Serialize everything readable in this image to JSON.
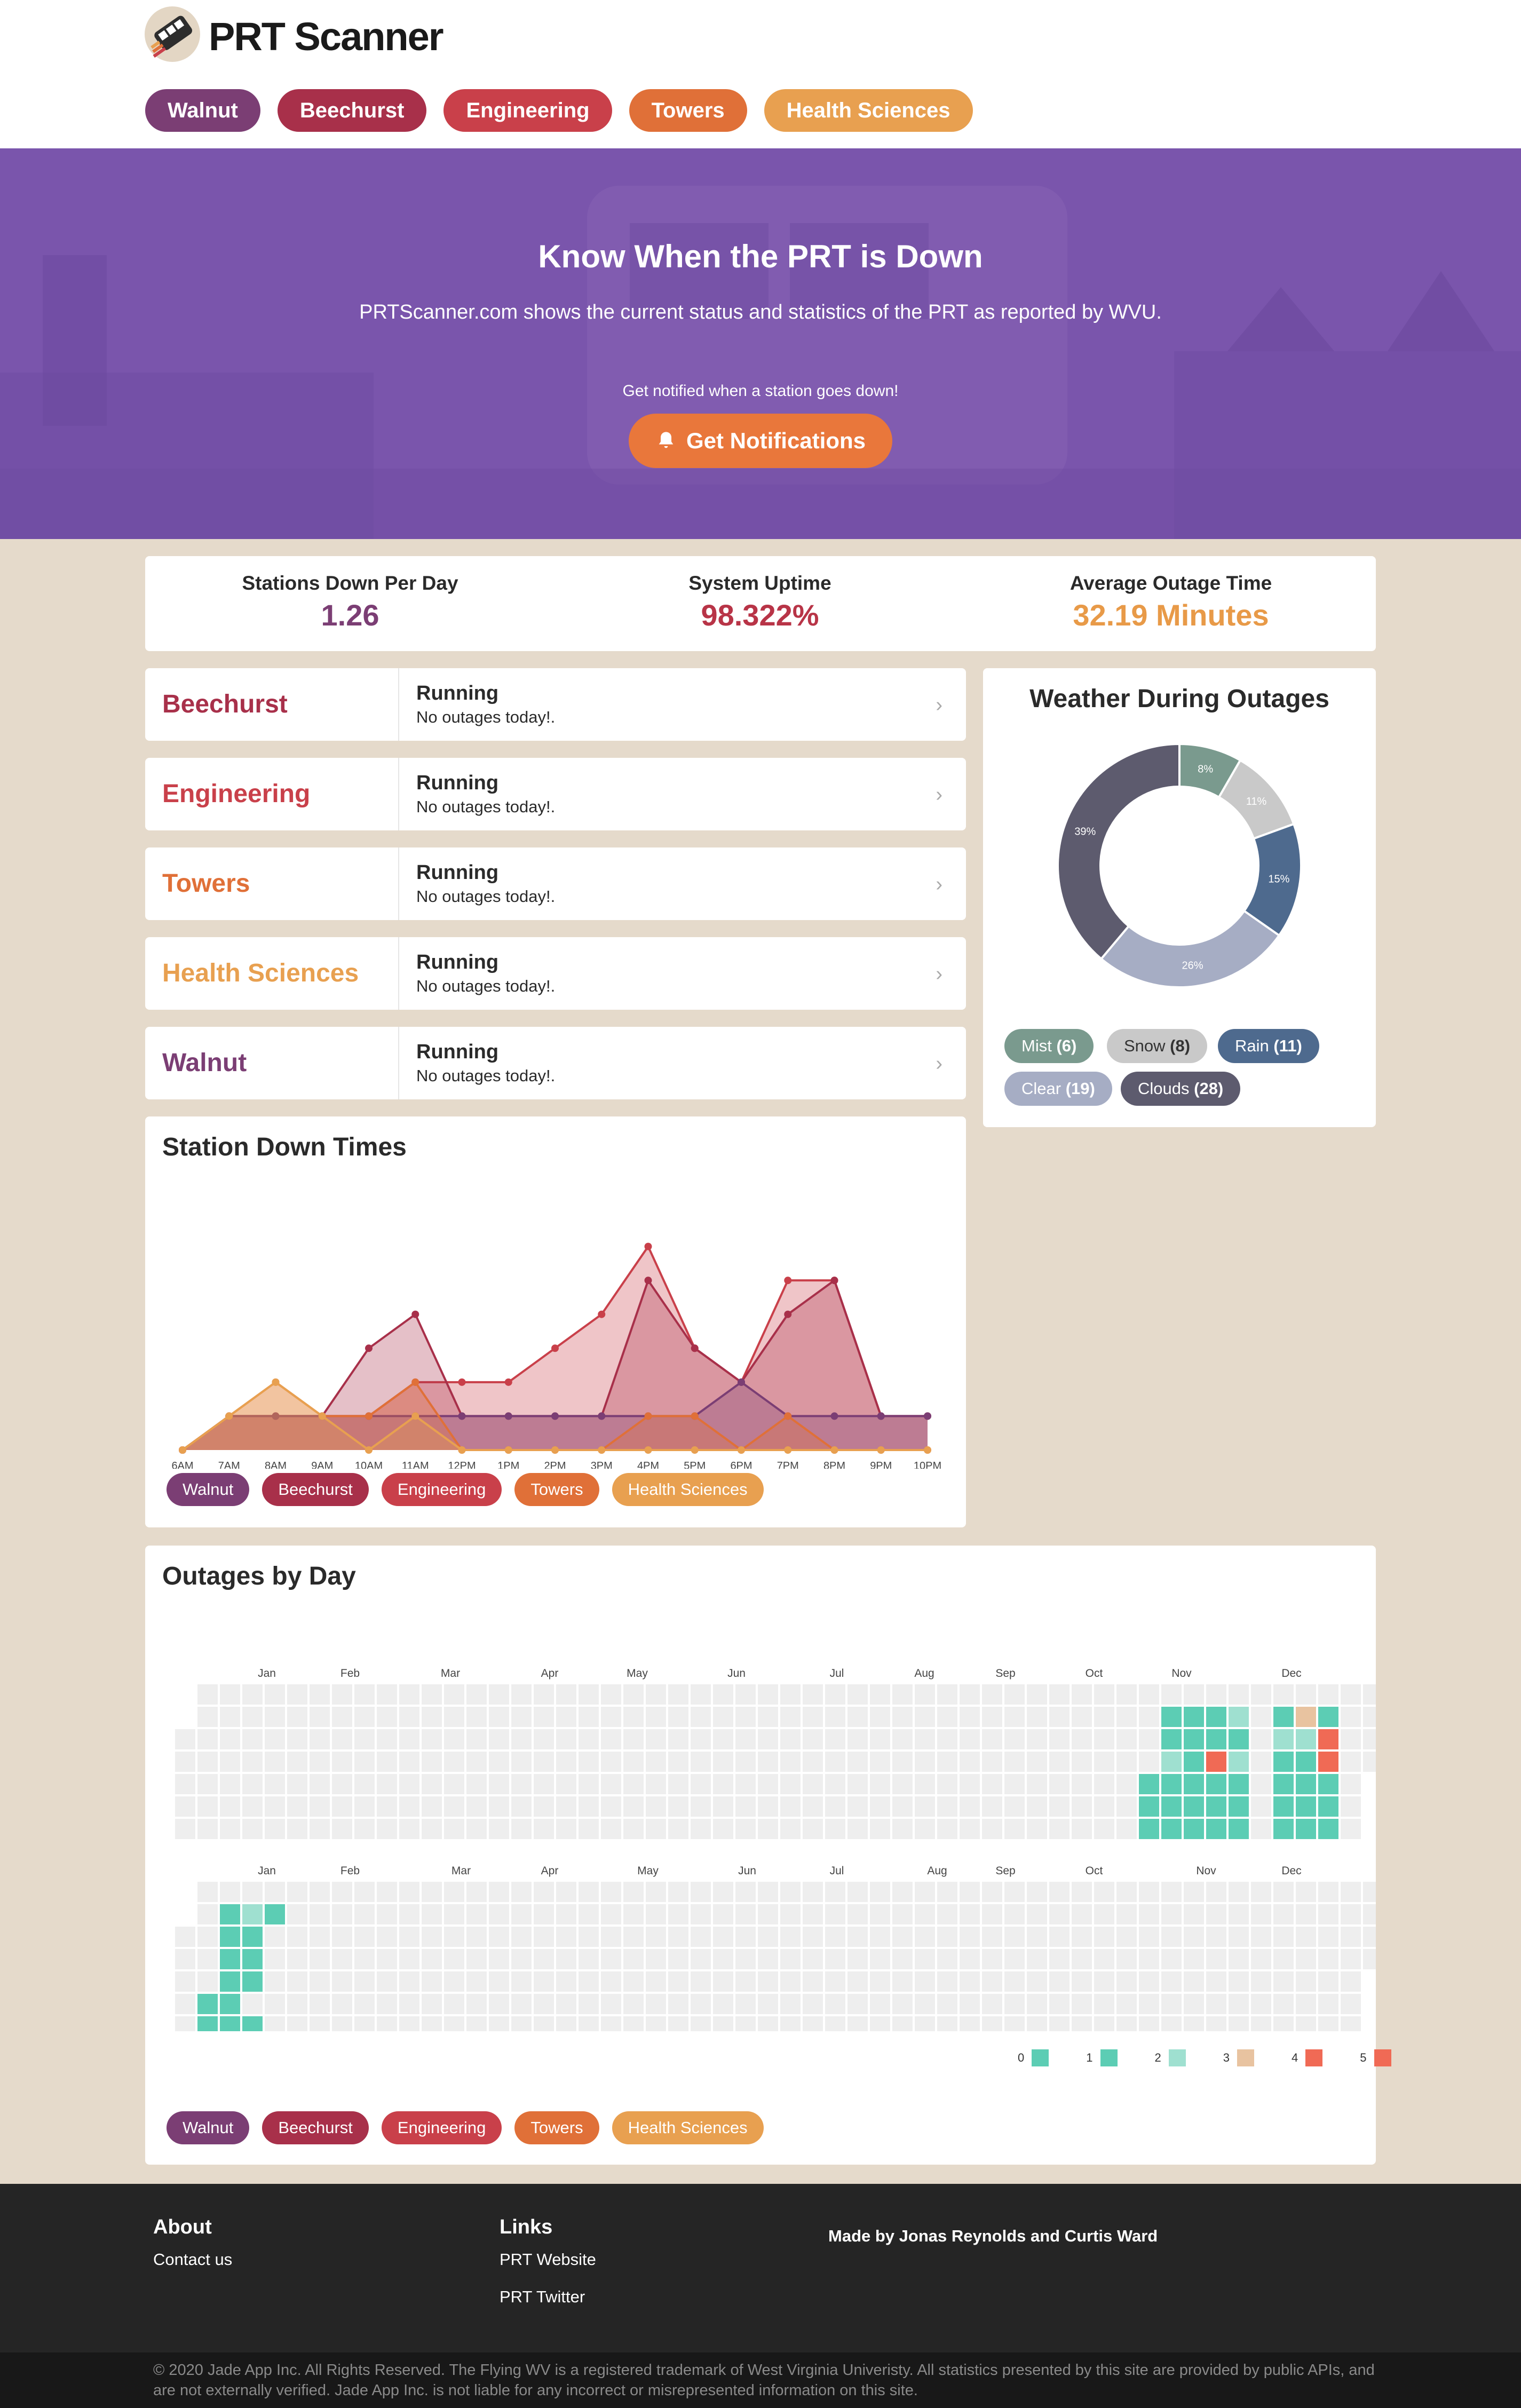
{
  "app": {
    "title": "PRT Scanner"
  },
  "nav": [
    {
      "label": "Walnut",
      "color": "#7b3e74"
    },
    {
      "label": "Beechurst",
      "color": "#a8304a"
    },
    {
      "label": "Engineering",
      "color": "#c9404a"
    },
    {
      "label": "Towers",
      "color": "#e07038"
    },
    {
      "label": "Health Sciences",
      "color": "#e8a050"
    }
  ],
  "hero": {
    "title": "Know When the PRT is Down",
    "subtitle": "PRTScanner.com shows the current status and statistics of the PRT as reported by WVU.",
    "notify_prompt": "Get notified when a station goes down!",
    "button": "Get Notifications"
  },
  "stats": [
    {
      "label": "Stations Down Per Day",
      "value": "1.26",
      "color": "#7b3e74"
    },
    {
      "label": "System Uptime",
      "value": "98.322%",
      "color": "#b83447"
    },
    {
      "label": "Average Outage Time",
      "value": "32.19 Minutes",
      "color": "#e89a48"
    }
  ],
  "stations": [
    {
      "name": "Beechurst",
      "color": "#a8304a",
      "status": "Running",
      "detail": "No outages today!."
    },
    {
      "name": "Engineering",
      "color": "#c9404a",
      "status": "Running",
      "detail": "No outages today!."
    },
    {
      "name": "Towers",
      "color": "#e07038",
      "status": "Running",
      "detail": "No outages today!."
    },
    {
      "name": "Health Sciences",
      "color": "#e8a050",
      "status": "Running",
      "detail": "No outages today!."
    },
    {
      "name": "Walnut",
      "color": "#7b3e74",
      "status": "Running",
      "detail": "No outages today!."
    }
  ],
  "weather": {
    "title": "Weather During Outages",
    "legend": [
      {
        "label": "Mist",
        "count": "(6)",
        "color": "#7a9a8e"
      },
      {
        "label": "Snow",
        "count": "(8)",
        "color": "#c9c9c9",
        "text_color": "#333"
      },
      {
        "label": "Rain",
        "count": "(11)",
        "color": "#4e6a8e"
      },
      {
        "label": "Clear",
        "count": "(19)",
        "color": "#a6adc4"
      },
      {
        "label": "Clouds",
        "count": "(28)",
        "color": "#5d5b6e"
      }
    ],
    "chart_data": {
      "type": "pie",
      "labels": [
        "Mist",
        "Snow",
        "Rain",
        "Clear",
        "Clouds"
      ],
      "values": [
        6,
        8,
        11,
        19,
        28
      ],
      "percent_labels": [
        "8%",
        "11%",
        "15%",
        "26%",
        "39%"
      ],
      "colors": [
        "#7a9a8e",
        "#c9c9c9",
        "#4e6a8e",
        "#a6adc4",
        "#5d5b6e"
      ],
      "donut": true
    }
  },
  "down_times": {
    "title": "Station Down Times",
    "legend": [
      "Walnut",
      "Beechurst",
      "Engineering",
      "Towers",
      "Health Sciences"
    ],
    "chart_data": {
      "type": "area",
      "categories": [
        "6AM",
        "7AM",
        "8AM",
        "9AM",
        "10AM",
        "11AM",
        "12PM",
        "1PM",
        "2PM",
        "3PM",
        "4PM",
        "5PM",
        "6PM",
        "7PM",
        "8PM",
        "9PM",
        "10PM"
      ],
      "ylim": [
        0,
        7
      ],
      "series": [
        {
          "name": "Walnut",
          "color": "#7b3e74",
          "values": [
            0,
            1,
            1,
            1,
            1,
            1,
            1,
            1,
            1,
            1,
            1,
            1,
            2,
            1,
            1,
            1,
            1
          ]
        },
        {
          "name": "Beechurst",
          "color": "#a8304a",
          "values": [
            0,
            1,
            1,
            1,
            3,
            4,
            1,
            1,
            1,
            1,
            5,
            3,
            2,
            4,
            5,
            1,
            1
          ]
        },
        {
          "name": "Engineering",
          "color": "#c9404a",
          "values": [
            0,
            1,
            1,
            1,
            1,
            2,
            2,
            2,
            3,
            4,
            6,
            3,
            2,
            5,
            5,
            1,
            1
          ]
        },
        {
          "name": "Towers",
          "color": "#e07038",
          "values": [
            0,
            1,
            2,
            1,
            1,
            2,
            0,
            0,
            0,
            0,
            1,
            1,
            0,
            1,
            0,
            0,
            0
          ]
        },
        {
          "name": "Health Sciences",
          "color": "#e8a050",
          "values": [
            0,
            1,
            2,
            1,
            0,
            1,
            0,
            0,
            0,
            0,
            0,
            0,
            0,
            0,
            0,
            0,
            0
          ]
        }
      ]
    }
  },
  "outages_by_day": {
    "title": "Outages by Day",
    "months": [
      "Jan",
      "Feb",
      "Mar",
      "Apr",
      "May",
      "Jun",
      "Jul",
      "Aug",
      "Sep",
      "Oct",
      "Nov",
      "Dec"
    ],
    "scale": [
      {
        "label": "0",
        "color": "#5ccdb4"
      },
      {
        "label": "1",
        "color": "#5ccdb4"
      },
      {
        "label": "2",
        "color": "#9fe0d0"
      },
      {
        "label": "3",
        "color": "#e8c3a0"
      },
      {
        "label": "4",
        "color": "#f06a55"
      },
      {
        "label": "5",
        "color": "#f06a55"
      }
    ],
    "legend": [
      "Walnut",
      "Beechurst",
      "Engineering",
      "Towers",
      "Health Sciences"
    ]
  },
  "footer": {
    "about_title": "About",
    "contact": "Contact us",
    "links_title": "Links",
    "prt_website": "PRT Website",
    "prt_twitter": "PRT Twitter",
    "made_by": "Made by Jonas Reynolds and Curtis Ward",
    "legal": "© 2020 Jade App Inc. All Rights Reserved. The Flying WV is a registered trademark of West Virginia Univeristy. All statistics presented by this site are provided by public APIs, and are not externally verified. Jade App Inc. is not liable for any incorrect or misrepresented information on this site."
  }
}
